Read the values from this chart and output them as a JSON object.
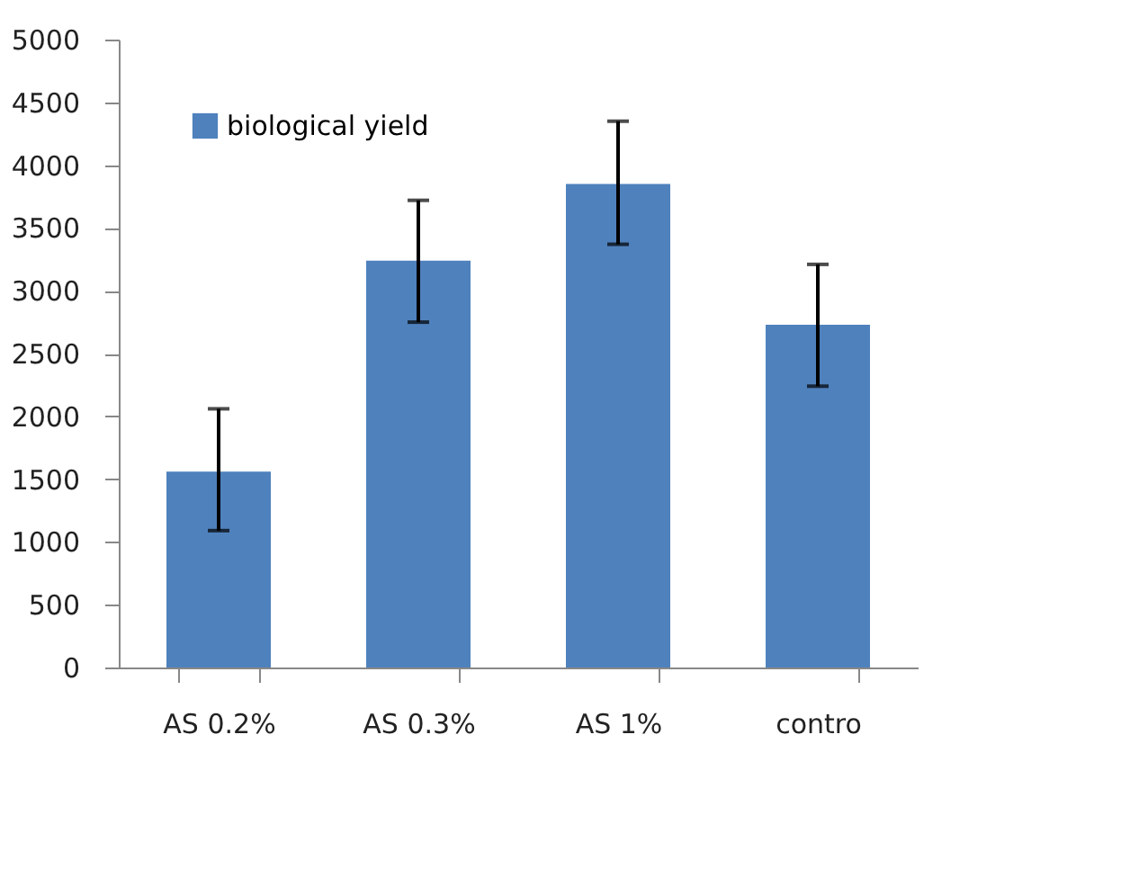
{
  "chart_data": {
    "type": "bar",
    "categories": [
      "AS 0.2%",
      "AS 0.3%",
      "AS  1%",
      "contro"
    ],
    "series": [
      {
        "name": "biological yield",
        "color": "#4f81bd",
        "values": [
          1560,
          3240,
          3850,
          2730
        ],
        "errors": [
          [
            1090,
            2060
          ],
          [
            2750,
            3720
          ],
          [
            3370,
            4350
          ],
          [
            2240,
            3210
          ]
        ]
      }
    ],
    "ylim": [
      0,
      5000
    ],
    "yticks": [
      0,
      500,
      1000,
      1500,
      2000,
      2500,
      3000,
      3500,
      4000,
      4500,
      5000
    ],
    "grid": false,
    "legend": "top left"
  }
}
